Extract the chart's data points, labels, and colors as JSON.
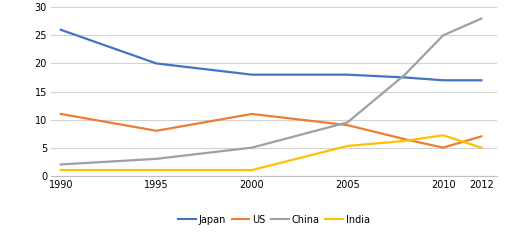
{
  "years": [
    1990,
    1995,
    2000,
    2005,
    2008,
    2010,
    2012
  ],
  "japan": [
    26,
    20,
    18,
    18,
    17.5,
    17,
    17
  ],
  "us": [
    11,
    8,
    11,
    9,
    6.5,
    5,
    7
  ],
  "china": [
    2,
    3,
    5,
    9.5,
    18,
    25,
    28
  ],
  "india": [
    1,
    1,
    1,
    5.3,
    6.2,
    7.2,
    5
  ],
  "colors": {
    "japan": "#4472C4",
    "us": "#ED7D31",
    "china": "#A0A0A0",
    "india": "#FFC000"
  },
  "legend_labels": [
    "Japan",
    "US",
    "China",
    "India"
  ],
  "ylim": [
    0,
    30
  ],
  "yticks": [
    0,
    5,
    10,
    15,
    20,
    25,
    30
  ],
  "xticks": [
    1990,
    1995,
    2000,
    2005,
    2010,
    2012
  ],
  "xlim": [
    1989.5,
    2012.8
  ],
  "background_color": "#ffffff",
  "grid_color": "#d3d3d3"
}
